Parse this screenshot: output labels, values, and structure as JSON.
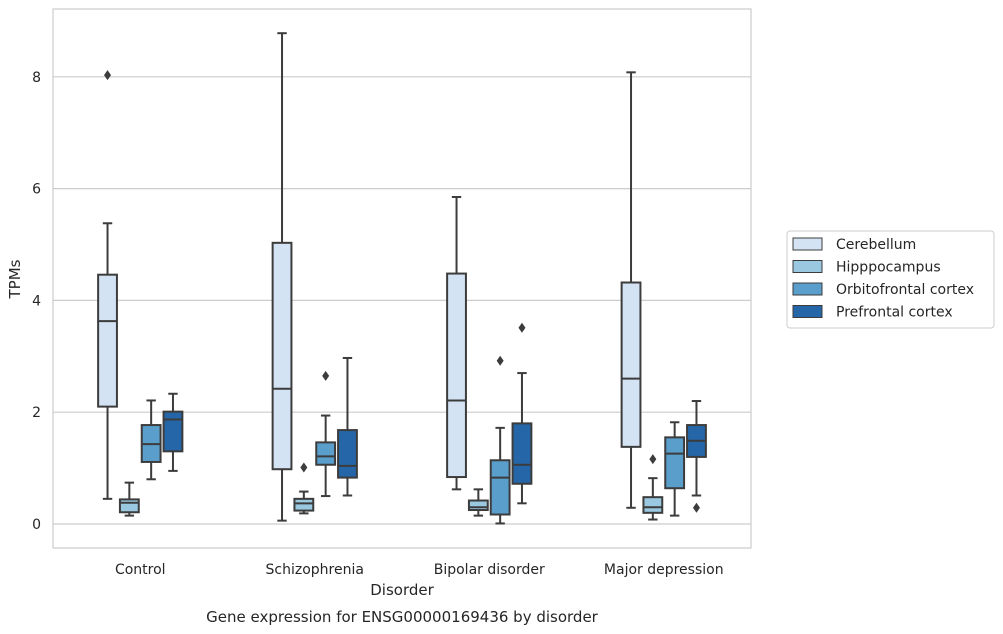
{
  "chart_data": {
    "type": "boxplot",
    "title": "",
    "caption": "Gene expression for ENSG00000169436 by disorder",
    "xlabel": "Disorder",
    "ylabel": "TPMs",
    "ylim": [
      -0.4,
      9.2
    ],
    "yticks": [
      0,
      2,
      4,
      6,
      8
    ],
    "grid": "horizontal",
    "legend_position": "outside-right",
    "categories": [
      "Control",
      "Schizophrenia",
      "Bipolar disorder",
      "Major depression"
    ],
    "series": [
      {
        "name": "Cerebellum",
        "color": "#d3e3f3",
        "boxes": [
          {
            "whislo": 0.45,
            "q1": 2.1,
            "med": 3.63,
            "q3": 4.46,
            "whishi": 5.38,
            "fliers": [
              8.03
            ]
          },
          {
            "whislo": 0.06,
            "q1": 0.98,
            "med": 2.42,
            "q3": 5.03,
            "whishi": 8.78,
            "fliers": []
          },
          {
            "whislo": 0.62,
            "q1": 0.84,
            "med": 2.21,
            "q3": 4.48,
            "whishi": 5.85,
            "fliers": []
          },
          {
            "whislo": 0.29,
            "q1": 1.38,
            "med": 2.6,
            "q3": 4.32,
            "whishi": 8.08,
            "fliers": []
          }
        ]
      },
      {
        "name": "Hipppocampus",
        "color": "#9ac8e0",
        "boxes": [
          {
            "whislo": 0.15,
            "q1": 0.21,
            "med": 0.38,
            "q3": 0.44,
            "whishi": 0.74,
            "fliers": []
          },
          {
            "whislo": 0.19,
            "q1": 0.24,
            "med": 0.37,
            "q3": 0.45,
            "whishi": 0.58,
            "fliers": [
              1.01
            ]
          },
          {
            "whislo": 0.15,
            "q1": 0.25,
            "med": 0.3,
            "q3": 0.42,
            "whishi": 0.62,
            "fliers": []
          },
          {
            "whislo": 0.08,
            "q1": 0.2,
            "med": 0.3,
            "q3": 0.48,
            "whishi": 0.82,
            "fliers": [
              1.16
            ]
          }
        ]
      },
      {
        "name": "Orbitofrontal cortex",
        "color": "#5a9ecc",
        "boxes": [
          {
            "whislo": 0.8,
            "q1": 1.11,
            "med": 1.43,
            "q3": 1.77,
            "whishi": 2.21,
            "fliers": []
          },
          {
            "whislo": 0.5,
            "q1": 1.06,
            "med": 1.21,
            "q3": 1.46,
            "whishi": 1.94,
            "fliers": [
              2.65
            ]
          },
          {
            "whislo": 0.01,
            "q1": 0.17,
            "med": 0.83,
            "q3": 1.14,
            "whishi": 1.72,
            "fliers": [
              2.92
            ]
          },
          {
            "whislo": 0.15,
            "q1": 0.64,
            "med": 1.26,
            "q3": 1.55,
            "whishi": 1.82,
            "fliers": []
          }
        ]
      },
      {
        "name": "Prefrontal cortex",
        "color": "#2566a8",
        "boxes": [
          {
            "whislo": 0.95,
            "q1": 1.3,
            "med": 1.87,
            "q3": 2.01,
            "whishi": 2.33,
            "fliers": []
          },
          {
            "whislo": 0.51,
            "q1": 0.83,
            "med": 1.04,
            "q3": 1.68,
            "whishi": 2.97,
            "fliers": []
          },
          {
            "whislo": 0.37,
            "q1": 0.72,
            "med": 1.06,
            "q3": 1.8,
            "whishi": 2.7,
            "fliers": [
              3.51
            ]
          },
          {
            "whislo": 0.51,
            "q1": 1.2,
            "med": 1.49,
            "q3": 1.77,
            "whishi": 2.2,
            "fliers": [
              0.29
            ]
          }
        ]
      }
    ]
  }
}
